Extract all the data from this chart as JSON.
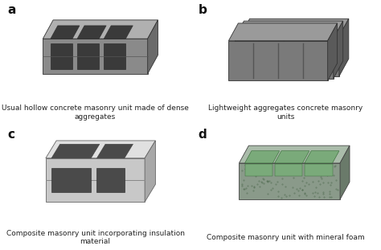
{
  "background_color": "#ffffff",
  "labels": [
    "a",
    "b",
    "c",
    "d"
  ],
  "captions": [
    "Usual hollow concrete masonry unit made of dense\naggregates",
    "Lightweight aggregates concrete masonry\nunits",
    "Composite masonry unit incorporating insulation\nmaterial",
    "Composite masonry unit with mineral foam"
  ],
  "caption_fontsize": 6.5,
  "label_fontsize": 11,
  "label_fontweight": "bold",
  "block_colors": {
    "a_face": "#8a8a8a",
    "a_top": "#b0b0b0",
    "a_side": "#6a6a6a",
    "a_hole": "#3a3a3a",
    "b_face": "#7a7a7a",
    "b_top": "#9a9a9a",
    "b_side": "#5a5a5a",
    "b_groove": "#555555",
    "c_face": "#c8c8c8",
    "c_top": "#e0e0e0",
    "c_side": "#a8a8a8",
    "c_insulation": "#4a4a4a",
    "d_face": "#8a9a8a",
    "d_top": "#aabcaa",
    "d_side": "#6a7a6a",
    "d_foam": "#7aaa7a"
  }
}
